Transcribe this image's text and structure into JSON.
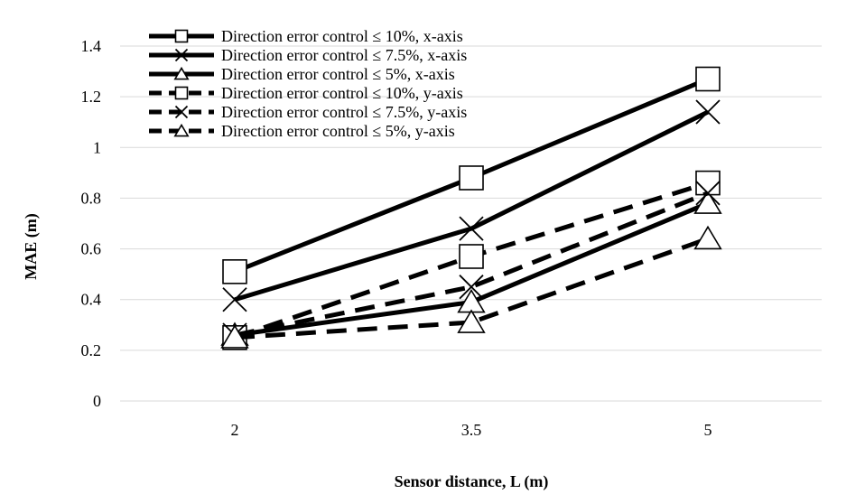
{
  "chart_data": {
    "type": "line",
    "title": "",
    "xlabel": "Sensor distance, L (m)",
    "ylabel": "MAE (m)",
    "categories": [
      "2",
      "3.5",
      "5"
    ],
    "ylim": [
      0,
      1.4
    ],
    "yticks": [
      "0",
      "0.2",
      "0.4",
      "0.6",
      "0.8",
      "1",
      "1.2",
      "1.4"
    ],
    "grid": true,
    "legend_position": "top-left",
    "series": [
      {
        "name": "Direction error control ≤ 10%, x-axis",
        "values": [
          0.51,
          0.88,
          1.27
        ],
        "marker": "square",
        "dash": "solid",
        "color": "#000000"
      },
      {
        "name": "Direction error control ≤ 7.5%, x-axis",
        "values": [
          0.4,
          0.68,
          1.14
        ],
        "marker": "x",
        "dash": "solid",
        "color": "#000000"
      },
      {
        "name": "Direction error control ≤ 5%, x-axis",
        "values": [
          0.26,
          0.39,
          0.78
        ],
        "marker": "triangle",
        "dash": "solid",
        "color": "#000000"
      },
      {
        "name": "Direction error control ≤ 10%, y-axis",
        "values": [
          0.25,
          0.57,
          0.86
        ],
        "marker": "square",
        "dash": "dashed",
        "color": "#000000"
      },
      {
        "name": "Direction error control ≤ 7.5%, y-axis",
        "values": [
          0.26,
          0.45,
          0.82
        ],
        "marker": "x",
        "dash": "dashed",
        "color": "#000000"
      },
      {
        "name": "Direction error control ≤ 5%, y-axis",
        "values": [
          0.25,
          0.31,
          0.64
        ],
        "marker": "triangle",
        "dash": "dashed",
        "color": "#000000"
      }
    ]
  }
}
